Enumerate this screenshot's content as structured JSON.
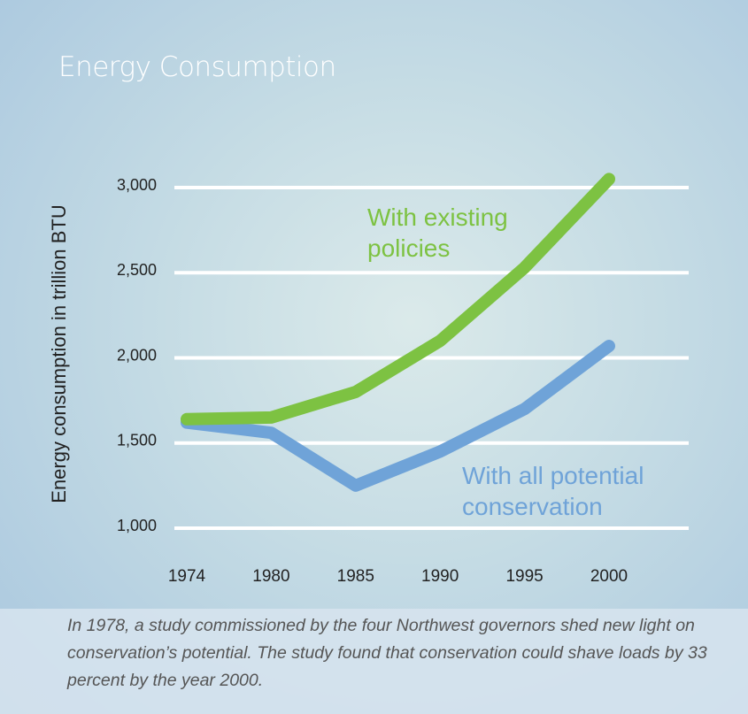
{
  "chart_data": {
    "type": "line",
    "title": "Energy Consumption",
    "ylabel": "Energy consumption in trillion BTU",
    "categories": [
      "1974",
      "1980",
      "1985",
      "1990",
      "1995",
      "2000"
    ],
    "series": [
      {
        "name": "With existing policies",
        "color": "#7dc242",
        "values": [
          1640,
          1650,
          1800,
          2100,
          2530,
          3050
        ]
      },
      {
        "name": "With all potential conservation",
        "color": "#6fa3d8",
        "values": [
          1620,
          1560,
          1250,
          1450,
          1700,
          2070
        ]
      }
    ],
    "ylim": [
      1000,
      3000
    ],
    "yticks": [
      {
        "value": 1000,
        "label": "1,000"
      },
      {
        "value": 1500,
        "label": "1,500"
      },
      {
        "value": 2000,
        "label": "2,000"
      },
      {
        "value": 2500,
        "label": "2,500"
      },
      {
        "value": 3000,
        "label": "3,000"
      }
    ],
    "grid": true,
    "caption": "In 1978, a study commissioned by the four Northwest governors shed new light on conservation’s potential. The study found that conservation could shave loads by 33 percent by the year 2000."
  }
}
